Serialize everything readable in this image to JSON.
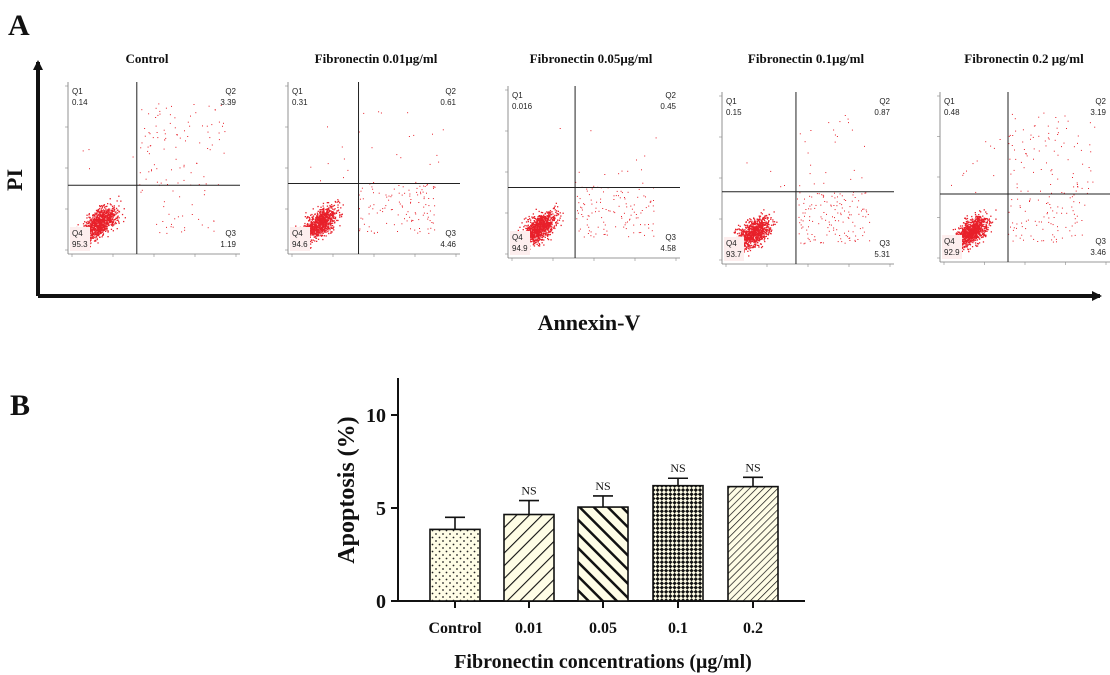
{
  "panel_a": {
    "label": "A",
    "y_axis_label": "PI",
    "x_axis_label": "Annexin-V"
  },
  "panel_b": {
    "label": "B"
  },
  "chart_data": [
    {
      "type": "scatter",
      "panel": "A",
      "xlabel": "Annexin-V",
      "ylabel": "PI",
      "point_color": "#e8202a",
      "plots": [
        {
          "title": "Control",
          "quadrants": {
            "Q1": "0.14",
            "Q2": "3.39",
            "Q3": "1.19",
            "Q4": "95.3"
          }
        },
        {
          "title": "Fibronectin 0.01μg/ml",
          "quadrants": {
            "Q1": "0.31",
            "Q2": "0.61",
            "Q3": "4.46",
            "Q4": "94.6"
          }
        },
        {
          "title": "Fibronectin 0.05μg/ml",
          "quadrants": {
            "Q1": "0.016",
            "Q2": "0.45",
            "Q3": "4.58",
            "Q4": "94.9"
          }
        },
        {
          "title": "Fibronectin 0.1μg/ml",
          "quadrants": {
            "Q1": "0.15",
            "Q2": "0.87",
            "Q3": "5.31",
            "Q4": "93.7"
          }
        },
        {
          "title": "Fibronectin 0.2 μg/ml",
          "quadrants": {
            "Q1": "0.48",
            "Q2": "3.19",
            "Q3": "3.46",
            "Q4": "92.9"
          }
        }
      ]
    },
    {
      "type": "bar",
      "panel": "B",
      "categories": [
        "Control",
        "0.01",
        "0.05",
        "0.1",
        "0.2"
      ],
      "values": [
        3.85,
        4.65,
        5.05,
        6.2,
        6.15
      ],
      "errors": [
        0.65,
        0.75,
        0.6,
        0.4,
        0.5
      ],
      "annotations": [
        "",
        "NS",
        "NS",
        "NS",
        "NS"
      ],
      "patterns": [
        "dots",
        "diagonal-thin",
        "diagonal-thick",
        "checker",
        "diagonal-dense"
      ],
      "bar_fill": "#fffde6",
      "xlabel": "Fibronectin concentrations (μg/ml)",
      "ylabel": "Apoptosis (%)",
      "ylim": [
        0,
        12
      ],
      "yticks": [
        "0",
        "5",
        "10"
      ]
    }
  ]
}
